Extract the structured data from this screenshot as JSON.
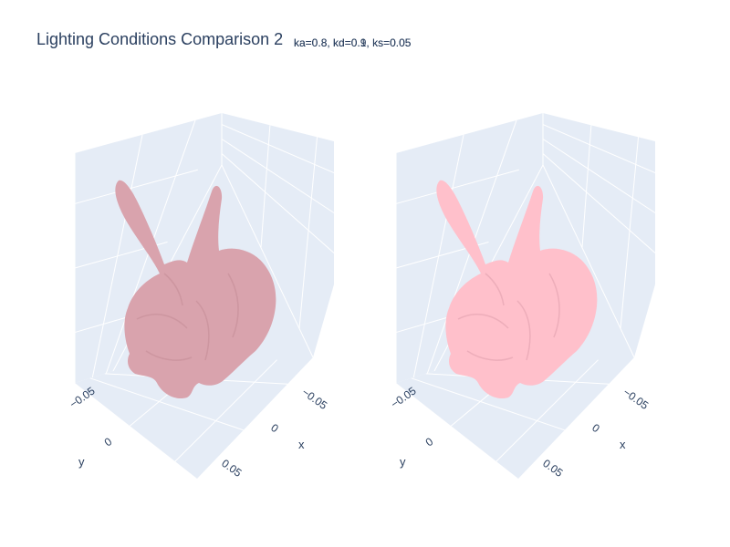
{
  "title": "Lighting Conditions Comparison 2",
  "chart_data": {
    "type": "mesh3d",
    "subplots": [
      {
        "subtitle": "ka=0.8, kd=0.9, ks=0.05",
        "color": "#d9a3ad",
        "shade": "#c7909a",
        "x_axis": {
          "title": "x",
          "ticks": [
            "−0.05",
            "0",
            "0.05"
          ]
        },
        "y_axis": {
          "title": "y",
          "ticks": [
            "−0.05",
            "0"
          ]
        },
        "grid": true
      },
      {
        "subtitle": "ka=0.8, kd=0.1, ks=0.05",
        "color": "#ffc0cb",
        "shade": "#e6a5b2",
        "x_axis": {
          "title": "x",
          "ticks": [
            "−0.05",
            "0",
            "0.05"
          ]
        },
        "y_axis": {
          "title": "y",
          "ticks": [
            "−0.05",
            "0"
          ]
        },
        "grid": true
      }
    ],
    "scene_background": "#e5ecf6",
    "grid_color": "#ffffff"
  }
}
